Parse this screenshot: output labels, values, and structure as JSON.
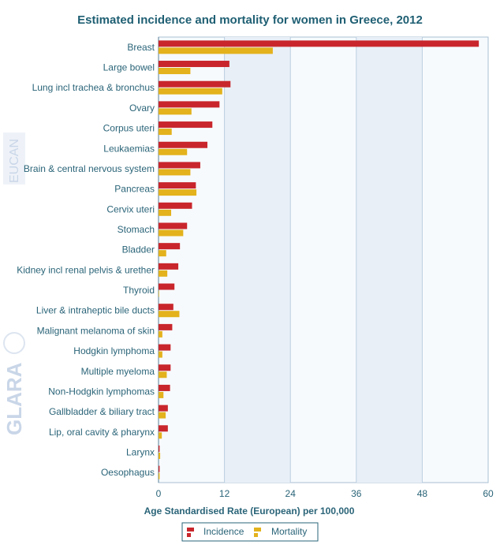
{
  "chart_data": {
    "type": "bar",
    "orientation": "horizontal",
    "title": "Estimated incidence and mortality for women in Greece, 2012",
    "xlabel": "Age Standardised Rate (European) per 100,000",
    "ylabel": "",
    "xlim": [
      0,
      60
    ],
    "xticks": [
      0,
      12,
      24,
      36,
      48,
      60
    ],
    "grid": true,
    "legend_position": "bottom-center",
    "categories": [
      "Breast",
      "Large bowel",
      "Lung incl trachea & bronchus",
      "Ovary",
      "Corpus uteri",
      "Leukaemias",
      "Brain & central nervous system",
      "Pancreas",
      "Cervix uteri",
      "Stomach",
      "Bladder",
      "Kidney incl renal pelvis & urether",
      "Thyroid",
      "Liver & intraheptic bile ducts",
      "Malignant melanoma of skin",
      "Hodgkin lymphoma",
      "Multiple myeloma",
      "Non-Hodgkin lymphomas",
      "Gallbladder & biliary tract",
      "Lip, oral cavity & pharynx",
      "Larynx",
      "Oesophagus"
    ],
    "series": [
      {
        "name": "Incidence",
        "color": "#c8262c",
        "values": [
          58.3,
          12.9,
          13.1,
          11.1,
          9.8,
          8.9,
          7.6,
          6.8,
          6.1,
          5.2,
          3.9,
          3.6,
          2.9,
          2.7,
          2.5,
          2.2,
          2.2,
          2.1,
          1.7,
          1.7,
          0.2,
          0.2
        ]
      },
      {
        "name": "Mortality",
        "color": "#e3b21c",
        "values": [
          20.8,
          5.8,
          11.6,
          6.0,
          2.4,
          5.2,
          5.8,
          6.9,
          2.3,
          4.5,
          1.4,
          1.6,
          0.1,
          3.8,
          0.7,
          0.7,
          1.5,
          0.9,
          1.3,
          0.6,
          0.3,
          0.2
        ]
      }
    ]
  },
  "watermark": {
    "text1": "EUCAN",
    "text2": "GLARA"
  }
}
